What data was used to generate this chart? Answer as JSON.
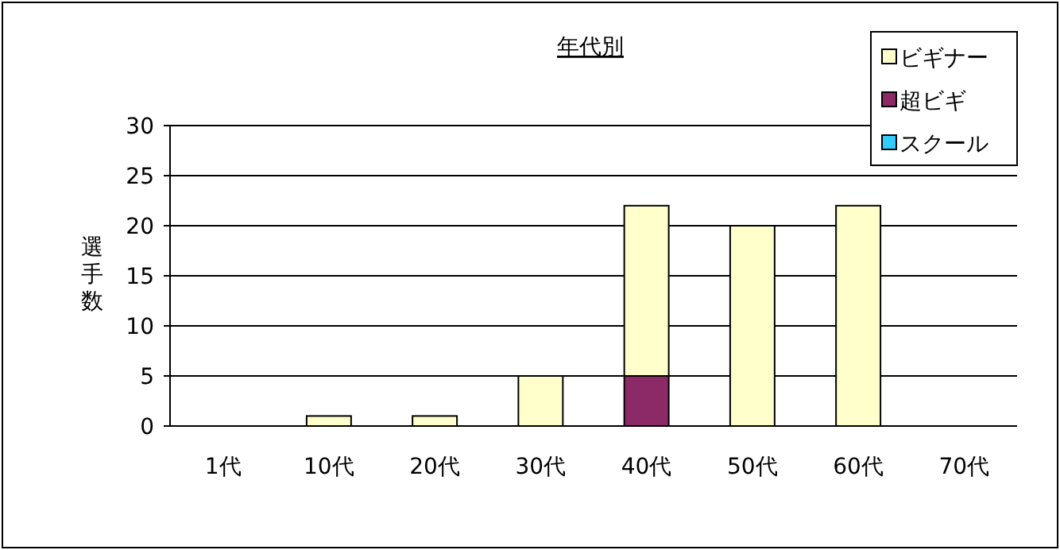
{
  "chart_data": {
    "type": "bar",
    "stacked": true,
    "title": "年代別",
    "ylabel": "選手数",
    "categories": [
      "1代",
      "10代",
      "20代",
      "30代",
      "40代",
      "50代",
      "60代",
      "70代"
    ],
    "series": [
      {
        "name": "スクール",
        "color": "#33ccff",
        "values": [
          0,
          0,
          0,
          0,
          0,
          0,
          0,
          0
        ]
      },
      {
        "name": "超ビギ",
        "color": "#8b2a66",
        "values": [
          0,
          0,
          0,
          0,
          5,
          0,
          0,
          0
        ]
      },
      {
        "name": "ビギナー",
        "color": "#ffffcc",
        "values": [
          0,
          1,
          1,
          5,
          17,
          20,
          22,
          0
        ]
      }
    ],
    "ylim": [
      0,
      30
    ],
    "yticks": [
      0,
      5,
      10,
      15,
      20,
      25,
      30
    ],
    "grid": "y",
    "legend": "top right"
  }
}
